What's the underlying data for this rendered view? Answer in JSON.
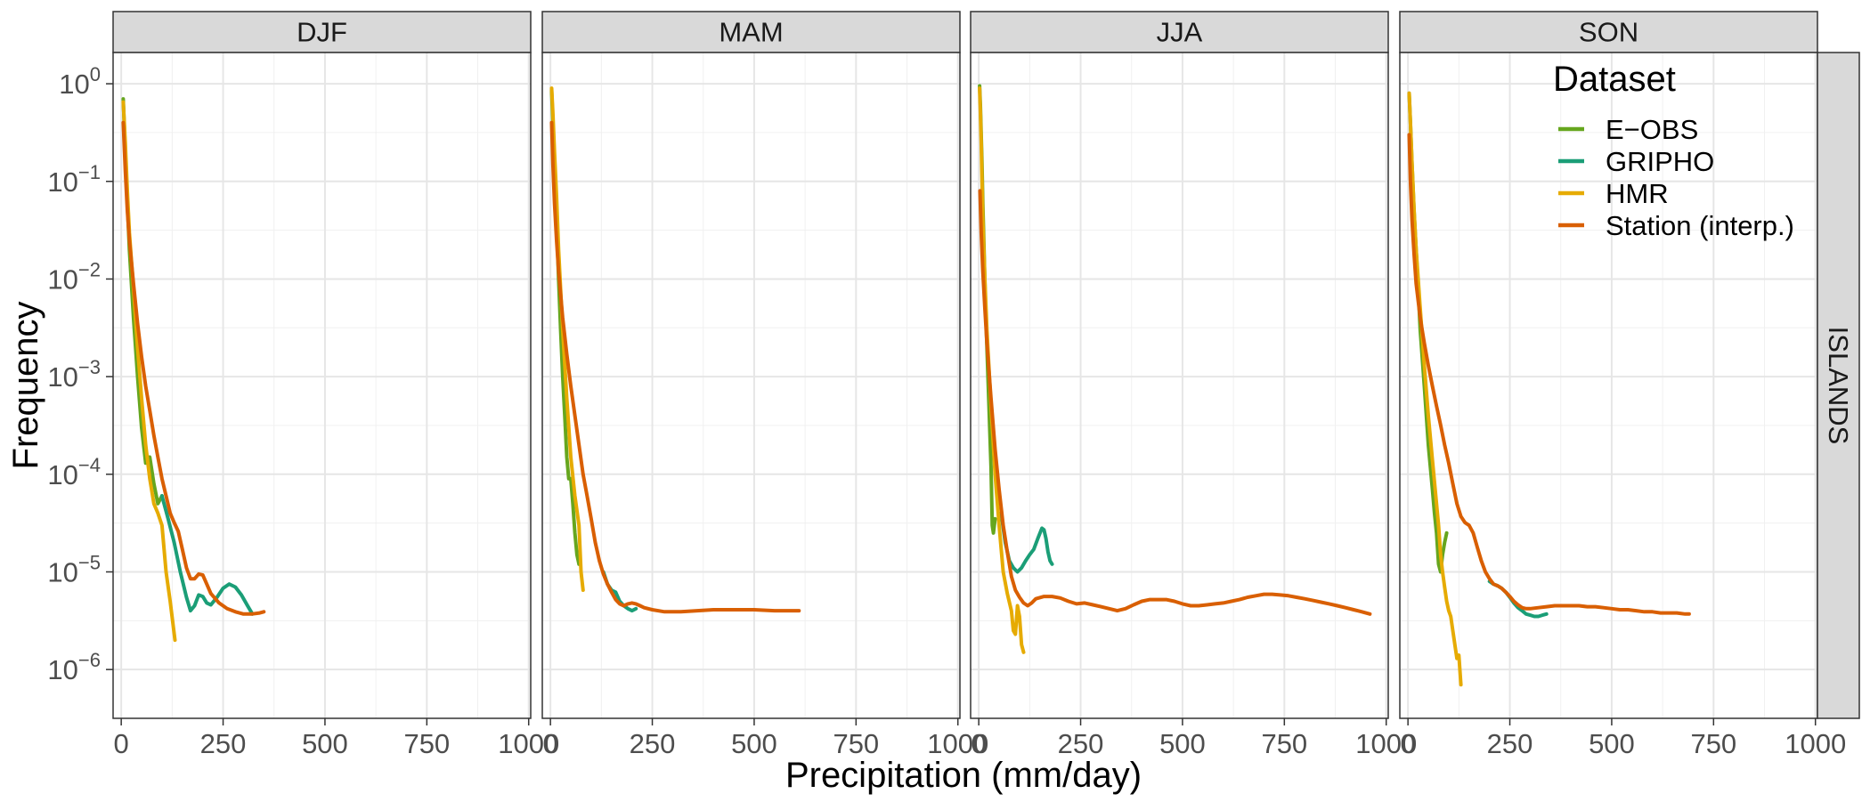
{
  "chart_data": {
    "type": "line",
    "xlabel": "Precipitation (mm/day)",
    "ylabel": "Frequency",
    "row_label": "ISLANDS",
    "xlim": [
      -20,
      1005
    ],
    "ylim_log10": [
      -6.5,
      0.32
    ],
    "x_ticks": [
      {
        "value": 0,
        "label": "0"
      },
      {
        "value": 250,
        "label": "250"
      },
      {
        "value": 500,
        "label": "500"
      },
      {
        "value": 750,
        "label": "750"
      },
      {
        "value": 1000,
        "label": "1000"
      }
    ],
    "y_ticks": [
      {
        "value": 1,
        "base": "10",
        "exp": "0"
      },
      {
        "value": 0.1,
        "base": "10",
        "exp": "−1"
      },
      {
        "value": 0.01,
        "base": "10",
        "exp": "−2"
      },
      {
        "value": 0.001,
        "base": "10",
        "exp": "−3"
      },
      {
        "value": 0.0001,
        "base": "10",
        "exp": "−4"
      },
      {
        "value": 1e-05,
        "base": "10",
        "exp": "−5"
      },
      {
        "value": 1e-06,
        "base": "10",
        "exp": "−6"
      }
    ],
    "y_scale": "log10",
    "grid": true,
    "legend": {
      "title": "Dataset",
      "placement": "top-right",
      "entries": [
        {
          "name": "E−OBS",
          "color": "#66a61e"
        },
        {
          "name": "GRIPHO",
          "color": "#1b9e77"
        },
        {
          "name": "HMR",
          "color": "#e6ab02"
        },
        {
          "name": "Station (interp.)",
          "color": "#d95f02"
        }
      ]
    },
    "panels": [
      {
        "title": "DJF",
        "series": [
          {
            "name": "E−OBS",
            "x": [
              5,
              10,
              15,
              20,
              30,
              40,
              50,
              60,
              70,
              80,
              90,
              100
            ],
            "y": [
              0.7,
              0.2,
              0.06,
              0.02,
              0.004,
              0.001,
              0.0003,
              0.00013,
              0.00015,
              8e-05,
              5e-05,
              6e-05
            ]
          },
          {
            "name": "GRIPHO",
            "x": [
              100,
              115,
              130,
              145,
              160,
              170,
              180,
              190,
              200,
              210,
              220,
              235,
              250,
              265,
              280,
              295,
              310,
              322
            ],
            "y": [
              6e-05,
              3.5e-05,
              2e-05,
              1e-05,
              5.5e-06,
              4e-06,
              4.5e-06,
              5.8e-06,
              5.6e-06,
              4.8e-06,
              4.6e-06,
              5.5e-06,
              6.8e-06,
              7.5e-06,
              7e-06,
              5.8e-06,
              4.5e-06,
              3.7e-06
            ]
          },
          {
            "name": "HMR",
            "x": [
              5,
              10,
              15,
              20,
              30,
              40,
              50,
              60,
              70,
              80,
              90,
              100,
              110,
              120,
              132
            ],
            "y": [
              0.65,
              0.25,
              0.08,
              0.03,
              0.008,
              0.002,
              0.0006,
              0.0002,
              9e-05,
              5e-05,
              4e-05,
              3e-05,
              1e-05,
              5e-06,
              2e-06
            ]
          },
          {
            "name": "Station (interp.)",
            "x": [
              5,
              10,
              15,
              20,
              30,
              40,
              50,
              60,
              70,
              80,
              90,
              100,
              110,
              120,
              130,
              140,
              150,
              160,
              170,
              180,
              190,
              200,
              210,
              220,
              240,
              260,
              280,
              300,
              320,
              340,
              350
            ],
            "y": [
              0.4,
              0.13,
              0.05,
              0.025,
              0.009,
              0.0035,
              0.0016,
              0.0008,
              0.00045,
              0.00025,
              0.00015,
              9e-05,
              6e-05,
              4e-05,
              3.2e-05,
              2.6e-05,
              1.7e-05,
              1.1e-05,
              8.5e-06,
              8.5e-06,
              9.5e-06,
              9.3e-06,
              7.5e-06,
              6e-06,
              4.8e-06,
              4.2e-06,
              3.9e-06,
              3.7e-06,
              3.7e-06,
              3.8e-06,
              3.9e-06
            ]
          }
        ]
      },
      {
        "title": "MAM",
        "series": [
          {
            "name": "E−OBS",
            "x": [
              3,
              6,
              10,
              15,
              20,
              25,
              30,
              35,
              40,
              45,
              50,
              55,
              60,
              65,
              70
            ],
            "y": [
              0.85,
              0.4,
              0.12,
              0.04,
              0.01,
              0.003,
              0.001,
              0.0004,
              0.00015,
              9e-05,
              9e-05,
              5e-05,
              2.5e-05,
              1.5e-05,
              1.2e-05
            ]
          },
          {
            "name": "GRIPHO",
            "x": [
              130,
              140,
              150,
              160,
              170,
              180,
              190,
              200,
              210
            ],
            "y": [
              1e-05,
              7.5e-06,
              6.5e-06,
              6.2e-06,
              5e-06,
              4.5e-06,
              4.2e-06,
              4e-06,
              4.2e-06
            ]
          },
          {
            "name": "HMR",
            "x": [
              3,
              6,
              10,
              15,
              20,
              30,
              40,
              50,
              60,
              70,
              75,
              80
            ],
            "y": [
              0.9,
              0.5,
              0.2,
              0.07,
              0.02,
              0.003,
              0.0006,
              0.00015,
              6e-05,
              3e-05,
              1e-05,
              6.5e-06
            ]
          },
          {
            "name": "Station (interp.)",
            "x": [
              3,
              6,
              10,
              15,
              20,
              30,
              40,
              50,
              60,
              70,
              80,
              90,
              100,
              110,
              120,
              130,
              140,
              150,
              160,
              170,
              180,
              190,
              200,
              210,
              220,
              230,
              250,
              280,
              320,
              360,
              400,
              450,
              500,
              550,
              600,
              610
            ],
            "y": [
              0.4,
              0.15,
              0.06,
              0.025,
              0.012,
              0.004,
              0.0017,
              0.0008,
              0.0004,
              0.0002,
              0.0001,
              6e-05,
              3.5e-05,
              2e-05,
              1.3e-05,
              9.5e-06,
              7.5e-06,
              6.2e-06,
              5.2e-06,
              4.7e-06,
              4.5e-06,
              4.7e-06,
              4.8e-06,
              4.7e-06,
              4.5e-06,
              4.3e-06,
              4.1e-06,
              3.9e-06,
              3.9e-06,
              4e-06,
              4.1e-06,
              4.1e-06,
              4.1e-06,
              4e-06,
              4e-06,
              4e-06
            ]
          }
        ]
      },
      {
        "title": "JJA",
        "series": [
          {
            "name": "E−OBS",
            "x": [
              2,
              4,
              6,
              8,
              10,
              13,
              16,
              20,
              25,
              30,
              33,
              36,
              40
            ],
            "y": [
              0.95,
              0.6,
              0.3,
              0.15,
              0.06,
              0.02,
              0.006,
              0.002,
              0.0005,
              0.00012,
              3e-05,
              2.5e-05,
              3.5e-05
            ]
          },
          {
            "name": "GRIPHO",
            "x": [
              55,
              65,
              75,
              85,
              95,
              105,
              115,
              125,
              135,
              145,
              155,
              160,
              165,
              170,
              175,
              180
            ],
            "y": [
              4e-05,
              2e-05,
              1.3e-05,
              1.1e-05,
              1e-05,
              1.1e-05,
              1.3e-05,
              1.5e-05,
              1.7e-05,
              2.2e-05,
              2.8e-05,
              2.7e-05,
              2.2e-05,
              1.6e-05,
              1.3e-05,
              1.2e-05
            ]
          },
          {
            "name": "HMR",
            "x": [
              2,
              4,
              6,
              8,
              10,
              15,
              20,
              30,
              40,
              50,
              60,
              70,
              80,
              85,
              90,
              95,
              100,
              105,
              110
            ],
            "y": [
              0.9,
              0.5,
              0.25,
              0.1,
              0.04,
              0.01,
              0.003,
              0.0005,
              0.0001,
              3e-05,
              1e-05,
              6e-06,
              4e-06,
              2.5e-06,
              2.3e-06,
              4.5e-06,
              3.5e-06,
              1.8e-06,
              1.5e-06
            ]
          },
          {
            "name": "Station (interp.)",
            "x": [
              3,
              6,
              10,
              15,
              20,
              30,
              40,
              50,
              60,
              70,
              80,
              90,
              100,
              110,
              120,
              130,
              140,
              160,
              180,
              200,
              220,
              240,
              260,
              280,
              300,
              320,
              340,
              360,
              380,
              400,
              420,
              440,
              460,
              480,
              500,
              520,
              540,
              560,
              580,
              600,
              620,
              640,
              660,
              680,
              700,
              720,
              740,
              760,
              780,
              800,
              820,
              840,
              860,
              880,
              900,
              920,
              940,
              960
            ],
            "y": [
              0.08,
              0.03,
              0.012,
              0.005,
              0.0022,
              0.0006,
              0.00018,
              7e-05,
              3e-05,
              1.6e-05,
              9e-06,
              6.5e-06,
              5.5e-06,
              4.8e-06,
              4.5e-06,
              4.8e-06,
              5.3e-06,
              5.6e-06,
              5.6e-06,
              5.4e-06,
              5e-06,
              4.7e-06,
              4.8e-06,
              4.6e-06,
              4.4e-06,
              4.2e-06,
              4e-06,
              4.2e-06,
              4.6e-06,
              5e-06,
              5.2e-06,
              5.2e-06,
              5.2e-06,
              5e-06,
              4.7e-06,
              4.5e-06,
              4.5e-06,
              4.6e-06,
              4.7e-06,
              4.8e-06,
              5e-06,
              5.2e-06,
              5.5e-06,
              5.7e-06,
              5.9e-06,
              5.9e-06,
              5.8e-06,
              5.7e-06,
              5.5e-06,
              5.3e-06,
              5.1e-06,
              4.9e-06,
              4.7e-06,
              4.5e-06,
              4.3e-06,
              4.1e-06,
              3.9e-06,
              3.7e-06
            ]
          }
        ]
      },
      {
        "title": "SON",
        "series": [
          {
            "name": "E−OBS",
            "x": [
              3,
              6,
              10,
              15,
              20,
              25,
              30,
              40,
              50,
              60,
              65,
              70,
              75,
              80,
              85,
              90,
              95
            ],
            "y": [
              0.8,
              0.4,
              0.15,
              0.05,
              0.02,
              0.008,
              0.003,
              0.0008,
              0.0002,
              7e-05,
              4e-05,
              2.5e-05,
              1.2e-05,
              1e-05,
              1.5e-05,
              2e-05,
              2.5e-05
            ]
          },
          {
            "name": "GRIPHO",
            "x": [
              200,
              210,
              220,
              230,
              240,
              250,
              260,
              270,
              280,
              290,
              300,
              310,
              320,
              330,
              340
            ],
            "y": [
              8e-06,
              7.5e-06,
              7.2e-06,
              6.8e-06,
              6.2e-06,
              5.5e-06,
              4.8e-06,
              4.3e-06,
              4e-06,
              3.7e-06,
              3.6e-06,
              3.5e-06,
              3.5e-06,
              3.6e-06,
              3.7e-06
            ]
          },
          {
            "name": "HMR",
            "x": [
              3,
              6,
              10,
              15,
              20,
              30,
              40,
              50,
              60,
              70,
              75,
              80,
              85,
              90,
              95,
              100,
              105,
              110,
              115,
              120,
              125,
              130
            ],
            "y": [
              0.8,
              0.4,
              0.15,
              0.05,
              0.02,
              0.005,
              0.0013,
              0.0004,
              0.00014,
              5e-05,
              3e-05,
              1.5e-05,
              1e-05,
              7e-06,
              5e-06,
              4e-06,
              3.5e-06,
              2.5e-06,
              1.8e-06,
              1.3e-06,
              1.4e-06,
              7e-07
            ]
          },
          {
            "name": "Station (interp.)",
            "x": [
              3,
              6,
              10,
              15,
              20,
              30,
              40,
              50,
              60,
              70,
              80,
              90,
              100,
              110,
              120,
              130,
              140,
              150,
              160,
              170,
              180,
              190,
              200,
              210,
              220,
              230,
              240,
              250,
              260,
              270,
              280,
              290,
              300,
              320,
              340,
              360,
              380,
              400,
              420,
              440,
              460,
              480,
              500,
              520,
              540,
              560,
              580,
              600,
              620,
              640,
              660,
              680,
              690
            ],
            "y": [
              0.3,
              0.1,
              0.04,
              0.018,
              0.009,
              0.004,
              0.0022,
              0.0013,
              0.0008,
              0.0005,
              0.00032,
              0.0002,
              0.00013,
              8e-05,
              5e-05,
              3.7e-05,
              3.2e-05,
              3e-05,
              2.5e-05,
              1.8e-05,
              1.3e-05,
              1e-05,
              8.5e-06,
              7.5e-06,
              7.2e-06,
              6.8e-06,
              6.2e-06,
              5.6e-06,
              5e-06,
              4.6e-06,
              4.3e-06,
              4.2e-06,
              4.2e-06,
              4.3e-06,
              4.4e-06,
              4.5e-06,
              4.5e-06,
              4.5e-06,
              4.5e-06,
              4.4e-06,
              4.4e-06,
              4.3e-06,
              4.2e-06,
              4.1e-06,
              4.1e-06,
              4e-06,
              3.9e-06,
              3.9e-06,
              3.8e-06,
              3.8e-06,
              3.8e-06,
              3.7e-06,
              3.7e-06
            ]
          }
        ]
      }
    ]
  }
}
